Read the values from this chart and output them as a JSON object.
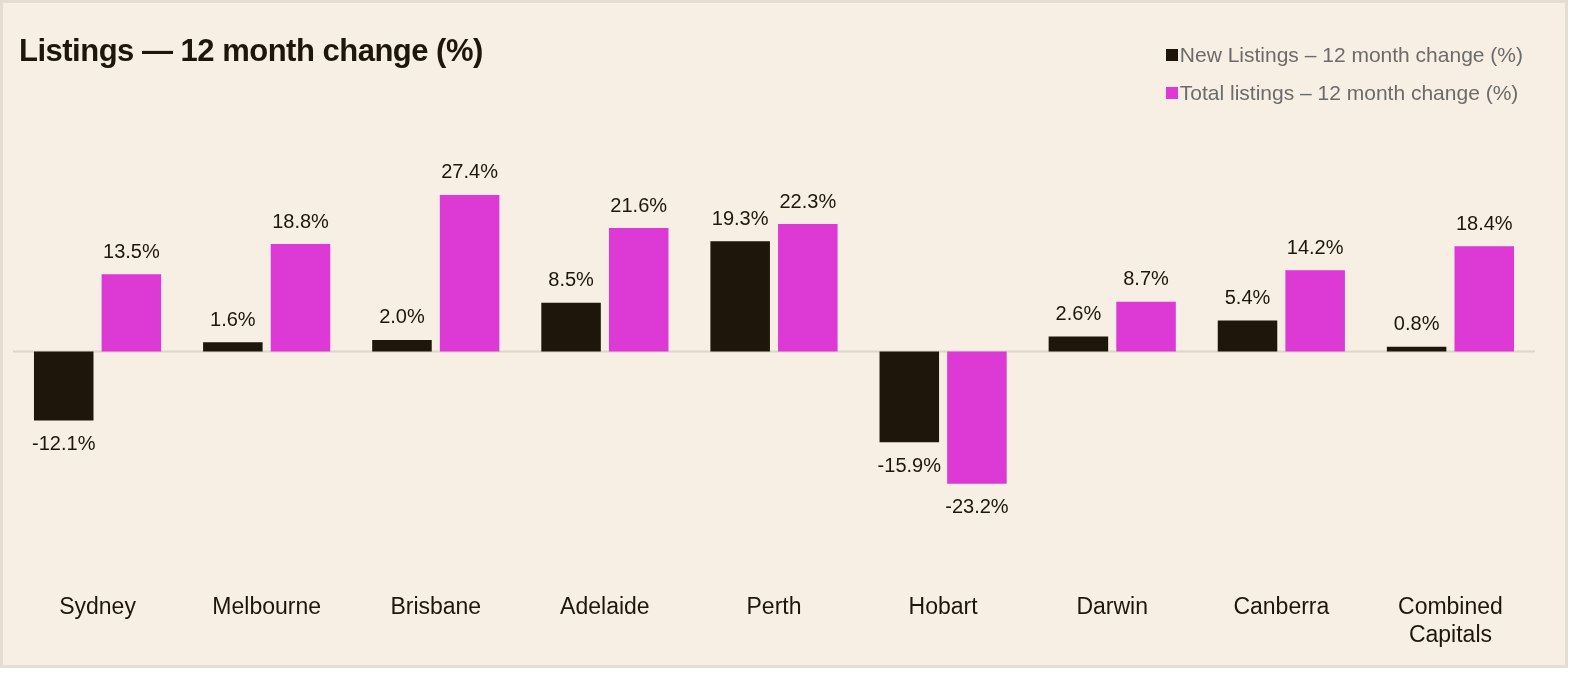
{
  "chart_data": {
    "type": "bar",
    "title": "Listings — 12 month change (%)",
    "categories": [
      "Sydney",
      "Melbourne",
      "Brisbane",
      "Adelaide",
      "Perth",
      "Hobart",
      "Darwin",
      "Canberra",
      "Combined Capitals"
    ],
    "series": [
      {
        "name": "New Listings – 12 month change (%)",
        "color": "#1e160b",
        "values": [
          -12.1,
          1.6,
          2.0,
          8.5,
          19.3,
          -15.9,
          2.6,
          5.4,
          0.8
        ],
        "value_labels": [
          "-12.1%",
          "1.6%",
          "2.0%",
          "8.5%",
          "19.3%",
          "-15.9%",
          "2.6%",
          "5.4%",
          "0.8%"
        ]
      },
      {
        "name": "Total listings – 12 month change (%)",
        "color": "#dd39d5",
        "values": [
          13.5,
          18.8,
          27.4,
          21.6,
          22.3,
          -23.2,
          8.7,
          14.2,
          18.4
        ],
        "value_labels": [
          "13.5%",
          "18.8%",
          "27.4%",
          "21.6%",
          "22.3%",
          "-23.2%",
          "8.7%",
          "14.2%",
          "18.4%"
        ]
      }
    ],
    "legend": "top right"
  }
}
